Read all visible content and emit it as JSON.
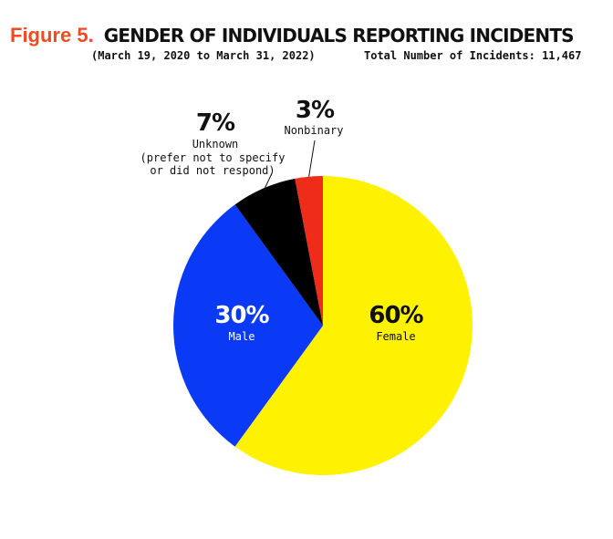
{
  "header": {
    "figure_label": "Figure 5.",
    "title": "GENDER OF INDIVIDUALS REPORTING INCIDENTS",
    "date_range": "(March 19, 2020 to March 31, 2022)",
    "total": "Total Number of Incidents: 11,467"
  },
  "chart_data": {
    "type": "pie",
    "title": "GENDER OF INDIVIDUALS REPORTING INCIDENTS",
    "subtitle": "(March 19, 2020 to March 31, 2022)",
    "total_label": "Total Number of Incidents: 11,467",
    "start": "12 o'clock",
    "direction": "clockwise",
    "slices": [
      {
        "key": "female",
        "label": "Female",
        "pct_label": "60%",
        "value": 60,
        "color": "#fef200"
      },
      {
        "key": "male",
        "label": "Male",
        "pct_label": "30%",
        "value": 30,
        "color": "#0a3af5"
      },
      {
        "key": "unknown",
        "label": "Unknown",
        "sublabel_lines": [
          "(prefer not to specify",
          "or did not respond)"
        ],
        "pct_label": "7%",
        "value": 7,
        "color": "#000000"
      },
      {
        "key": "nonbinary",
        "label": "Nonbinary",
        "pct_label": "3%",
        "value": 3,
        "color": "#ef2b1a"
      }
    ]
  }
}
